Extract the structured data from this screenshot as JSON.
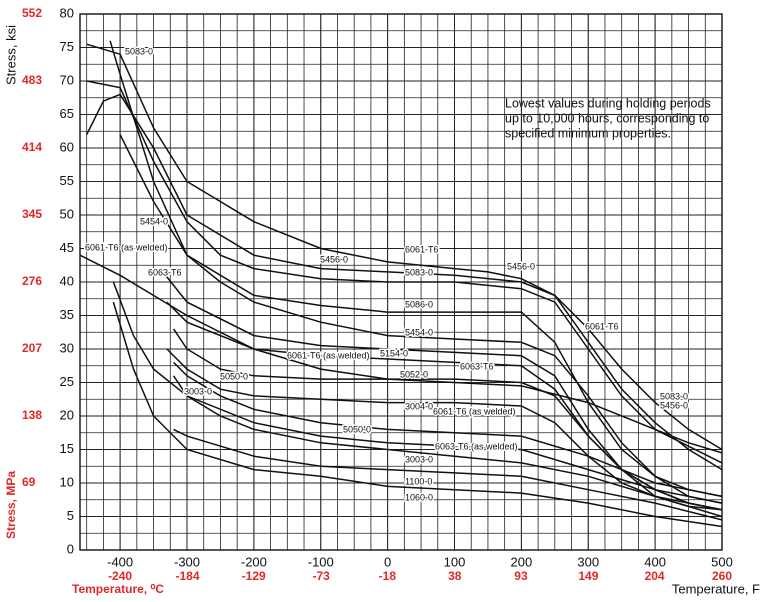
{
  "chart_data": {
    "type": "line",
    "ylabel": "Stress, ksi",
    "y2label": "Stress, MPa",
    "xlabel": "Temperature, F",
    "x2label": "Temperature, ⁰C",
    "annotation": [
      "Lowest values during holding periods",
      "up to 10,000 hours, corresponding to",
      "specified minimum properties."
    ],
    "xlim": [
      -460,
      500
    ],
    "xticks": [
      -400,
      -300,
      -200,
      -100,
      0,
      100,
      200,
      300,
      400,
      500
    ],
    "x2lim": [
      -273.3,
      260
    ],
    "x2ticks": [
      -240,
      -184,
      -129,
      -73,
      -18,
      38,
      93,
      149,
      204,
      260
    ],
    "ylim": [
      0,
      80
    ],
    "yticks": [
      0,
      5,
      10,
      15,
      20,
      25,
      30,
      35,
      40,
      45,
      50,
      55,
      60,
      65,
      70,
      75,
      80
    ],
    "y2lim": [
      0,
      551.6
    ],
    "y2ticks": [
      69,
      138,
      207,
      276,
      345,
      414,
      483,
      552
    ],
    "grid": true,
    "series": [
      {
        "name": "6061-T6",
        "color": "#111111",
        "x": [
          -450,
          -400,
          -350,
          -300,
          -200,
          -100,
          0,
          100,
          150,
          200,
          250,
          300,
          350,
          400,
          450,
          500
        ],
        "values": [
          75.5,
          74,
          63,
          55,
          49,
          45,
          43,
          42,
          41.5,
          40.5,
          38,
          33,
          27,
          22,
          18,
          15
        ]
      },
      {
        "name": "5083-0",
        "color": "#111111",
        "x": [
          -450,
          -400,
          -350,
          -300,
          -250,
          -200,
          -100,
          0,
          100,
          200,
          250,
          300,
          350,
          400,
          450,
          500
        ],
        "values": [
          70,
          69,
          58,
          49,
          44,
          42,
          40.5,
          40,
          40,
          39,
          37,
          30,
          23,
          18,
          16,
          14.5
        ]
      },
      {
        "name": "5456-0",
        "color": "#111111",
        "x": [
          -450,
          -425,
          -400,
          -350,
          -300,
          -200,
          -100,
          0,
          100,
          200,
          250,
          300,
          350,
          400,
          450,
          500
        ],
        "values": [
          62,
          67,
          68,
          60,
          50,
          44,
          42,
          41.5,
          41,
          40,
          38,
          31,
          24,
          19,
          15,
          12
        ]
      },
      {
        "name": "5454-0",
        "color": "#111111",
        "x": [
          -415,
          -400,
          -350,
          -300,
          -250,
          -200,
          -100,
          0,
          100,
          200,
          250,
          300,
          350,
          400,
          450,
          500
        ],
        "values": [
          76,
          71,
          55,
          44,
          40,
          37,
          34,
          32,
          31.5,
          31,
          29,
          23,
          16,
          11,
          8,
          7
        ]
      },
      {
        "name": "5086-0",
        "color": "#111111",
        "x": [
          -400,
          -350,
          -300,
          -200,
          -100,
          0,
          100,
          200,
          250,
          300,
          350,
          400,
          450,
          500
        ],
        "values": [
          62,
          52,
          44,
          38,
          36.5,
          35.5,
          35.5,
          35.5,
          31,
          22,
          15,
          11,
          9,
          8
        ]
      },
      {
        "name": "6063-T6",
        "color": "#111111",
        "x": [
          -340,
          -300,
          -200,
          -100,
          0,
          100,
          200,
          250,
          300,
          350,
          400,
          450,
          500
        ],
        "values": [
          42,
          37,
          32,
          30.5,
          30,
          29.5,
          29,
          26,
          18,
          12,
          9,
          7,
          6
        ]
      },
      {
        "name": "5154-0",
        "color": "#111111",
        "x": [
          -330,
          -300,
          -200,
          -100,
          0,
          100,
          200,
          250,
          300,
          350,
          400,
          450,
          500
        ],
        "values": [
          37,
          34,
          30,
          29,
          28.5,
          28,
          27.5,
          24,
          17,
          12,
          9,
          7,
          6
        ]
      },
      {
        "name": "6061-T6 (as welded)",
        "color": "#111111",
        "x": [
          -460,
          -400,
          -300,
          -200,
          -100,
          0,
          100,
          200,
          300,
          400,
          500
        ],
        "values": [
          44,
          41,
          35,
          30,
          27,
          25.5,
          25,
          24.5,
          22,
          18,
          13
        ]
      },
      {
        "name": "5052-0",
        "color": "#111111",
        "x": [
          -320,
          -300,
          -250,
          -200,
          -100,
          0,
          100,
          200,
          250,
          300,
          350,
          400,
          450,
          500
        ],
        "values": [
          33,
          30,
          27,
          26,
          25.5,
          25.5,
          25.5,
          25,
          23,
          17,
          12,
          8,
          6.5,
          6
        ]
      },
      {
        "name": "5050-0",
        "color": "#111111",
        "x": [
          -320,
          -300,
          -250,
          -200,
          -100,
          0,
          100,
          200,
          300,
          400,
          500
        ],
        "values": [
          28,
          26,
          23,
          21,
          19,
          18,
          17.5,
          17,
          14,
          10,
          8
        ]
      },
      {
        "name": "3004-0",
        "color": "#111111",
        "x": [
          -330,
          -300,
          -250,
          -200,
          -100,
          0,
          100,
          200,
          250,
          300,
          350,
          400,
          500
        ],
        "values": [
          30,
          27,
          24,
          23,
          22.5,
          22,
          22,
          21.5,
          19,
          14,
          10,
          8,
          6
        ]
      },
      {
        "name": "3003-0",
        "color": "#111111",
        "x": [
          -320,
          -300,
          -250,
          -200,
          -100,
          0,
          100,
          200,
          300,
          400,
          500
        ],
        "values": [
          26,
          23,
          20,
          18,
          16,
          15,
          14,
          13,
          11,
          8,
          5
        ]
      },
      {
        "name": "6063-T6 (as welded)",
        "color": "#111111",
        "x": [
          -410,
          -380,
          -350,
          -300,
          -200,
          -100,
          0,
          100,
          200,
          300,
          400,
          500
        ],
        "values": [
          40,
          32,
          27,
          23,
          19,
          17,
          16,
          15.5,
          15,
          12,
          9,
          7
        ]
      },
      {
        "name": "1100-0",
        "color": "#111111",
        "x": [
          -320,
          -300,
          -200,
          -100,
          0,
          100,
          200,
          300,
          400,
          500
        ],
        "values": [
          18,
          17,
          14,
          12.5,
          12,
          11.5,
          11,
          9,
          7,
          4.5
        ]
      },
      {
        "name": "1060-0",
        "color": "#111111",
        "x": [
          -410,
          -380,
          -350,
          -300,
          -200,
          -100,
          0,
          100,
          200,
          300,
          400,
          500
        ],
        "values": [
          37,
          27,
          20,
          15,
          12,
          11,
          9.5,
          9,
          8.5,
          7,
          5,
          3.5
        ]
      }
    ]
  }
}
